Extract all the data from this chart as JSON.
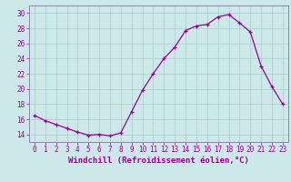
{
  "x": [
    0,
    1,
    2,
    3,
    4,
    5,
    6,
    7,
    8,
    9,
    10,
    11,
    12,
    13,
    14,
    15,
    16,
    17,
    18,
    19,
    20,
    21,
    22,
    23
  ],
  "y": [
    16.5,
    15.8,
    15.3,
    14.8,
    14.3,
    13.9,
    14.0,
    13.8,
    14.2,
    17.0,
    19.8,
    22.0,
    24.0,
    25.5,
    27.7,
    28.3,
    28.5,
    29.5,
    29.8,
    28.7,
    27.5,
    23.0,
    20.3,
    18.0
  ],
  "xlim": [
    -0.5,
    23.5
  ],
  "ylim": [
    13.0,
    31.0
  ],
  "yticks": [
    14,
    16,
    18,
    20,
    22,
    24,
    26,
    28,
    30
  ],
  "xtick_labels": [
    "0",
    "1",
    "2",
    "3",
    "4",
    "5",
    "6",
    "7",
    "8",
    "9",
    "10",
    "11",
    "12",
    "13",
    "14",
    "15",
    "16",
    "17",
    "18",
    "19",
    "20",
    "21",
    "22",
    "23"
  ],
  "xlabel": "Windchill (Refroidissement éolien,°C)",
  "line_color": "#990099",
  "marker": "+",
  "bg_color": "#cce8e8",
  "grid_color": "#aacccc",
  "label_fontsize": 6.5,
  "tick_fontsize": 5.5
}
